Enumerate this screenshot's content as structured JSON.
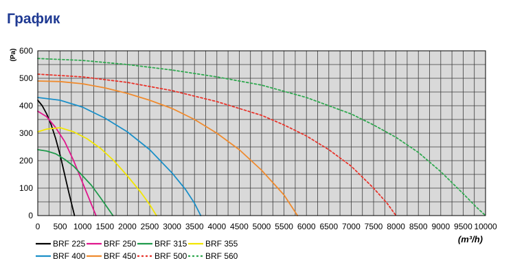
{
  "page": {
    "title": "График"
  },
  "chart_data": {
    "type": "line",
    "title": "",
    "xlabel": "(m³/h)",
    "ylabel": "(Pa)",
    "xlim": [
      0,
      10000
    ],
    "ylim": [
      0,
      600
    ],
    "x_ticks": [
      0,
      500,
      1000,
      1500,
      2000,
      2500,
      3000,
      3500,
      4000,
      4500,
      5000,
      5500,
      6000,
      6500,
      7000,
      7500,
      8000,
      8500,
      9000,
      9500,
      10000
    ],
    "y_ticks": [
      0,
      100,
      200,
      300,
      400,
      500,
      600
    ],
    "grid": true,
    "background": "#d9d9d9",
    "legend_position": "bottom-left",
    "series": [
      {
        "name": "BRF 225",
        "color": "#000000",
        "dash": "solid",
        "x": [
          0,
          100,
          200,
          300,
          400,
          500,
          600,
          700,
          820
        ],
        "y": [
          420,
          400,
          370,
          330,
          280,
          220,
          150,
          80,
          0
        ]
      },
      {
        "name": "BRF 250",
        "color": "#e0158c",
        "dash": "solid",
        "x": [
          0,
          200,
          400,
          600,
          800,
          1000,
          1150,
          1300
        ],
        "y": [
          380,
          360,
          320,
          270,
          200,
          120,
          60,
          0
        ]
      },
      {
        "name": "BRF 315",
        "color": "#1e9a4b",
        "dash": "solid",
        "x": [
          0,
          200,
          400,
          600,
          800,
          1000,
          1200,
          1400,
          1550,
          1680
        ],
        "y": [
          240,
          235,
          225,
          205,
          180,
          145,
          110,
          65,
          30,
          0
        ]
      },
      {
        "name": "BRF 355",
        "color": "#f2e600",
        "dash": "solid",
        "x": [
          0,
          200,
          500,
          800,
          1100,
          1400,
          1700,
          2000,
          2300,
          2500,
          2650
        ],
        "y": [
          305,
          315,
          320,
          305,
          280,
          245,
          200,
          145,
          85,
          40,
          0
        ]
      },
      {
        "name": "BRF 400",
        "color": "#1a8fc8",
        "dash": "solid",
        "x": [
          0,
          500,
          1000,
          1500,
          2000,
          2500,
          3000,
          3300,
          3500,
          3640
        ],
        "y": [
          430,
          420,
          395,
          355,
          305,
          240,
          155,
          95,
          45,
          0
        ]
      },
      {
        "name": "BRF 450",
        "color": "#ef8a2d",
        "dash": "solid",
        "x": [
          0,
          500,
          1000,
          1500,
          2000,
          2500,
          3000,
          3500,
          4000,
          4500,
          5000,
          5500,
          5800
        ],
        "y": [
          490,
          488,
          480,
          465,
          445,
          420,
          390,
          350,
          300,
          240,
          165,
          75,
          0
        ]
      },
      {
        "name": "BRF 500",
        "color": "#e8332a",
        "dash": "dashed",
        "x": [
          0,
          1000,
          2000,
          3000,
          4000,
          5000,
          5500,
          6000,
          6500,
          7000,
          7500,
          7800,
          8000
        ],
        "y": [
          515,
          505,
          485,
          455,
          415,
          365,
          330,
          290,
          240,
          180,
          100,
          45,
          0
        ]
      },
      {
        "name": "BRF 560",
        "color": "#2fa84f",
        "dash": "dashed",
        "x": [
          0,
          1000,
          2000,
          3000,
          4000,
          5000,
          6000,
          7000,
          7500,
          8000,
          8500,
          9000,
          9500,
          9800,
          10000
        ],
        "y": [
          572,
          565,
          550,
          530,
          505,
          475,
          430,
          370,
          330,
          285,
          230,
          160,
          80,
          30,
          0
        ]
      }
    ]
  }
}
